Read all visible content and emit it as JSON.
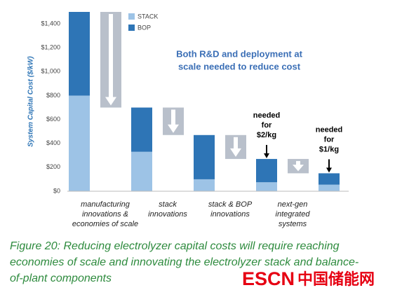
{
  "chart_data": {
    "type": "waterfall",
    "ylabel": "System Capital Cost ($/kW)",
    "ylim": [
      0,
      1500
    ],
    "yticks": [
      {
        "value": 0,
        "label": "$0"
      },
      {
        "value": 200,
        "label": "$200"
      },
      {
        "value": 400,
        "label": "$400"
      },
      {
        "value": 600,
        "label": "$600"
      },
      {
        "value": 800,
        "label": "$800"
      },
      {
        "value": 1000,
        "label": "$1,000"
      },
      {
        "value": 1200,
        "label": "$1,200"
      },
      {
        "value": 1400,
        "label": "$1,400"
      }
    ],
    "series": [
      {
        "name": "STACK",
        "color": "#9dc3e6",
        "values": [
          800,
          330,
          100,
          75,
          55
        ]
      },
      {
        "name": "BOP",
        "color": "#2e75b6",
        "values": [
          700,
          370,
          370,
          195,
          95
        ]
      }
    ],
    "arrows": [
      {
        "from": 1500,
        "to": 700
      },
      {
        "from": 700,
        "to": 470
      },
      {
        "from": 470,
        "to": 270
      },
      {
        "from": 270,
        "to": 150
      }
    ],
    "arrow_color": "#b9c0cb",
    "category_labels": [
      [
        "manufacturing",
        "innovations &",
        "economies of scale"
      ],
      [
        "stack",
        "innovations"
      ],
      [
        "stack & BOP",
        "innovations"
      ],
      [
        "next-gen",
        "integrated",
        "systems"
      ]
    ],
    "annotations": [
      {
        "bar": 3,
        "lines": [
          "needed",
          "for",
          "$2/kg"
        ]
      },
      {
        "bar": 4,
        "lines": [
          "needed",
          "for",
          "$1/kg"
        ]
      }
    ],
    "callout": [
      "Both R&D and deployment at",
      "scale needed to reduce cost"
    ]
  },
  "caption": [
    "Figure 20: Reducing electrolyzer capital costs will require reaching",
    "economies of scale and innovating the electrolyzer stack and balance-",
    "of-plant components"
  ],
  "watermark": {
    "latin": "ESCN",
    "cjk": "中国储能网"
  }
}
